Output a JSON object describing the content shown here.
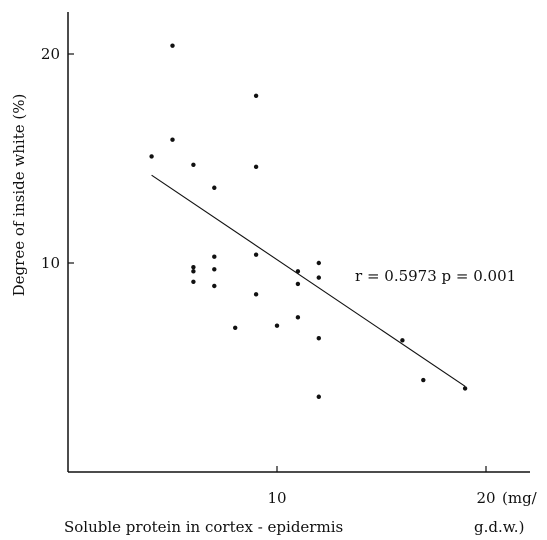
{
  "chart_data": {
    "type": "scatter",
    "xlabel": "Soluble protein in cortex - epidermis",
    "xunit_line1": "(mg/",
    "xunit_line2": "g.d.w.)",
    "ylabel": "Degree of inside white (%)",
    "xlim": [
      0,
      22
    ],
    "ylim": [
      0,
      22
    ],
    "x_ticks": [
      10,
      20
    ],
    "x_tick_labels": [
      "10",
      "20"
    ],
    "y_ticks": [
      10,
      20
    ],
    "y_tick_labels": [
      "10",
      "20"
    ],
    "annotation": "r = 0.5973  p = 0.001",
    "points": [
      {
        "x": 4,
        "y": 15.1
      },
      {
        "x": 5,
        "y": 20.4
      },
      {
        "x": 5,
        "y": 15.9
      },
      {
        "x": 6,
        "y": 14.7
      },
      {
        "x": 6,
        "y": 9.8
      },
      {
        "x": 6,
        "y": 9.6
      },
      {
        "x": 6,
        "y": 9.1
      },
      {
        "x": 7,
        "y": 13.6
      },
      {
        "x": 7,
        "y": 10.3
      },
      {
        "x": 7,
        "y": 9.7
      },
      {
        "x": 7,
        "y": 8.9
      },
      {
        "x": 8,
        "y": 6.9
      },
      {
        "x": 9,
        "y": 18.0
      },
      {
        "x": 9,
        "y": 14.6
      },
      {
        "x": 9,
        "y": 10.4
      },
      {
        "x": 9,
        "y": 8.5
      },
      {
        "x": 10,
        "y": 7.0
      },
      {
        "x": 11,
        "y": 9.6
      },
      {
        "x": 11,
        "y": 9.0
      },
      {
        "x": 11,
        "y": 7.4
      },
      {
        "x": 12,
        "y": 10.0
      },
      {
        "x": 12,
        "y": 9.3
      },
      {
        "x": 12,
        "y": 6.4
      },
      {
        "x": 12,
        "y": 3.6
      },
      {
        "x": 16,
        "y": 6.3
      },
      {
        "x": 17,
        "y": 4.4
      },
      {
        "x": 19,
        "y": 4.0
      }
    ],
    "fit_line": {
      "x": [
        4,
        19
      ],
      "y": [
        14.2,
        4.1
      ]
    }
  }
}
